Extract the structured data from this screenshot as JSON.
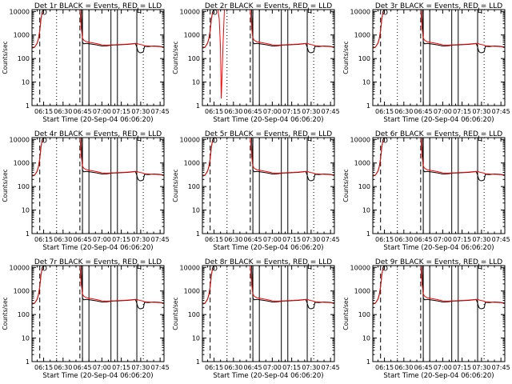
{
  "chart_data": {
    "type": "line",
    "shared": {
      "x_ticks": [
        "06:15",
        "06:30",
        "06:45",
        "07:00",
        "07:15",
        "07:30",
        "07:45"
      ],
      "x_tick_minutes": [
        15,
        30,
        45,
        60,
        75,
        90,
        105
      ],
      "xlim_minutes": [
        6,
        108
      ],
      "y_ticks": [
        "1",
        "10",
        "100",
        "1000",
        "10000"
      ],
      "y_tick_values": [
        1,
        10,
        100,
        1000,
        10000
      ],
      "ylim": [
        1,
        12000
      ],
      "y_scale": "log",
      "ylabel": "Counts/sec",
      "xlabel": "Start Time (20-Sep-04 06:06:20)",
      "grid": false,
      "series_colors": {
        "events": "#000000",
        "lld": "#ff0000"
      },
      "vlines": [
        {
          "x": 12,
          "style": "dashed"
        },
        {
          "x": 25,
          "style": "dotted"
        },
        {
          "x": 43,
          "style": "dashed"
        },
        {
          "x": 45,
          "style": "solid"
        },
        {
          "x": 50,
          "style": "solid"
        },
        {
          "x": 67,
          "style": "solid"
        },
        {
          "x": 72,
          "style": "solid"
        },
        {
          "x": 87,
          "style": "solid"
        },
        {
          "x": 92,
          "style": "dotted"
        }
      ],
      "events_series": {
        "x": [
          6,
          8,
          10,
          11,
          12,
          13,
          14,
          15,
          16,
          17,
          18,
          43,
          44,
          45,
          46,
          48,
          52,
          56,
          60,
          64,
          68,
          72,
          76,
          80,
          84,
          86,
          87,
          88,
          89,
          90,
          92,
          93,
          96,
          100,
          104,
          108
        ],
        "y": [
          280,
          300,
          450,
          700,
          1500,
          5000,
          10000,
          12000,
          12000,
          12000,
          12000,
          12000,
          12000,
          500,
          420,
          440,
          410,
          380,
          340,
          350,
          370,
          380,
          390,
          400,
          420,
          430,
          300,
          200,
          180,
          175,
          190,
          330,
          320,
          340,
          330,
          310
        ]
      },
      "lld_series": {
        "x": [
          6,
          8,
          10,
          11,
          12,
          13,
          14,
          15,
          16,
          17,
          18,
          43,
          44,
          45,
          46,
          48,
          52,
          56,
          60,
          64,
          68,
          72,
          76,
          80,
          84,
          86,
          87,
          88,
          89,
          90,
          92,
          93,
          96,
          100,
          104,
          108
        ],
        "y": [
          280,
          300,
          450,
          700,
          1500,
          5000,
          10000,
          12000,
          12000,
          12000,
          12000,
          12000,
          2000,
          750,
          600,
          520,
          470,
          430,
          380,
          370,
          380,
          390,
          400,
          410,
          430,
          440,
          440,
          420,
          400,
          390,
          370,
          350,
          340,
          330,
          320,
          310
        ]
      },
      "markers": [
        {
          "label": "O",
          "x": 15.5,
          "y": 9000
        },
        {
          "label": "L",
          "x": 88.5,
          "y": 11000
        }
      ]
    },
    "panels": [
      {
        "title": "Det 1r BLACK = Events, RED = LLD",
        "dip": null
      },
      {
        "title": "Det 2r BLACK = Events, RED = LLD",
        "dip": {
          "x": [
            18,
            19,
            20,
            20.5,
            21,
            22,
            23
          ],
          "y": [
            12000,
            5000,
            300,
            2,
            10,
            500,
            12000
          ]
        }
      },
      {
        "title": "Det 3r BLACK = Events, RED = LLD",
        "dip": null
      },
      {
        "title": "Det 4r BLACK = Events, RED = LLD",
        "dip": null
      },
      {
        "title": "Det 5r BLACK = Events, RED = LLD",
        "dip": null
      },
      {
        "title": "Det 6r BLACK = Events, RED = LLD",
        "dip": null
      },
      {
        "title": "Det 7r BLACK = Events, RED = LLD",
        "dip": null
      },
      {
        "title": "Det 8r BLACK = Events, RED = LLD",
        "dip": null
      },
      {
        "title": "Det 9r BLACK = Events, RED = LLD",
        "dip": null
      }
    ]
  }
}
